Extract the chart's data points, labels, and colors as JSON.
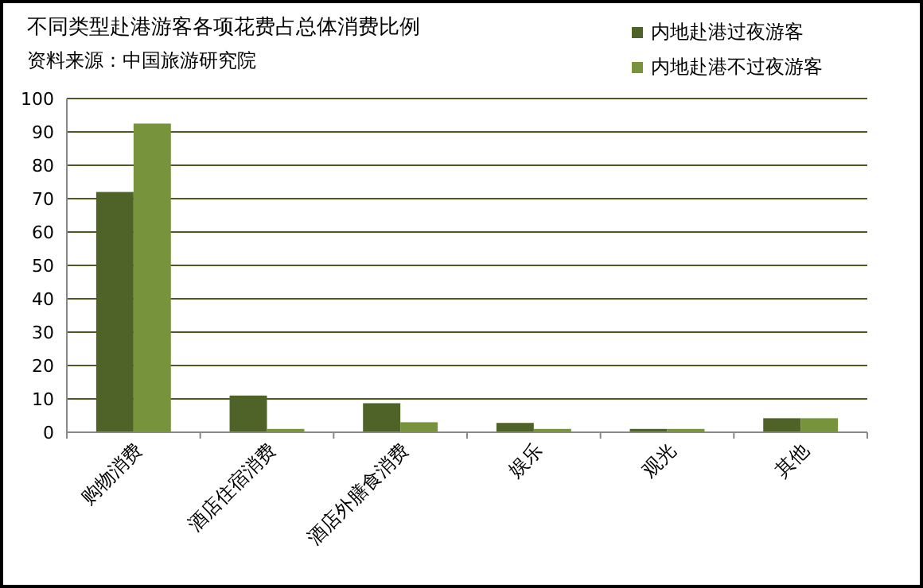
{
  "chart_data": {
    "type": "bar",
    "title": "不同类型赴港游客各项花费占总体消费比例",
    "annotations": [
      "资料来源：中国旅游研究院"
    ],
    "categories": [
      "购物消费",
      "酒店住宿消费",
      "酒店外膳食消费",
      "娱乐",
      "观光",
      "其他"
    ],
    "series": [
      {
        "name": "内地赴港过夜游客",
        "color": "#4f6228",
        "values": [
          72,
          11,
          8.7,
          2.8,
          1,
          4.2
        ]
      },
      {
        "name": "内地赴港不过夜游客",
        "color": "#77933c",
        "values": [
          92.5,
          1,
          3,
          1,
          1,
          4.2
        ]
      }
    ],
    "ylim": [
      0,
      100
    ],
    "yticks": [
      0,
      10,
      20,
      30,
      40,
      50,
      60,
      70,
      80,
      90,
      100
    ],
    "grid": "y",
    "legend": "top right"
  }
}
